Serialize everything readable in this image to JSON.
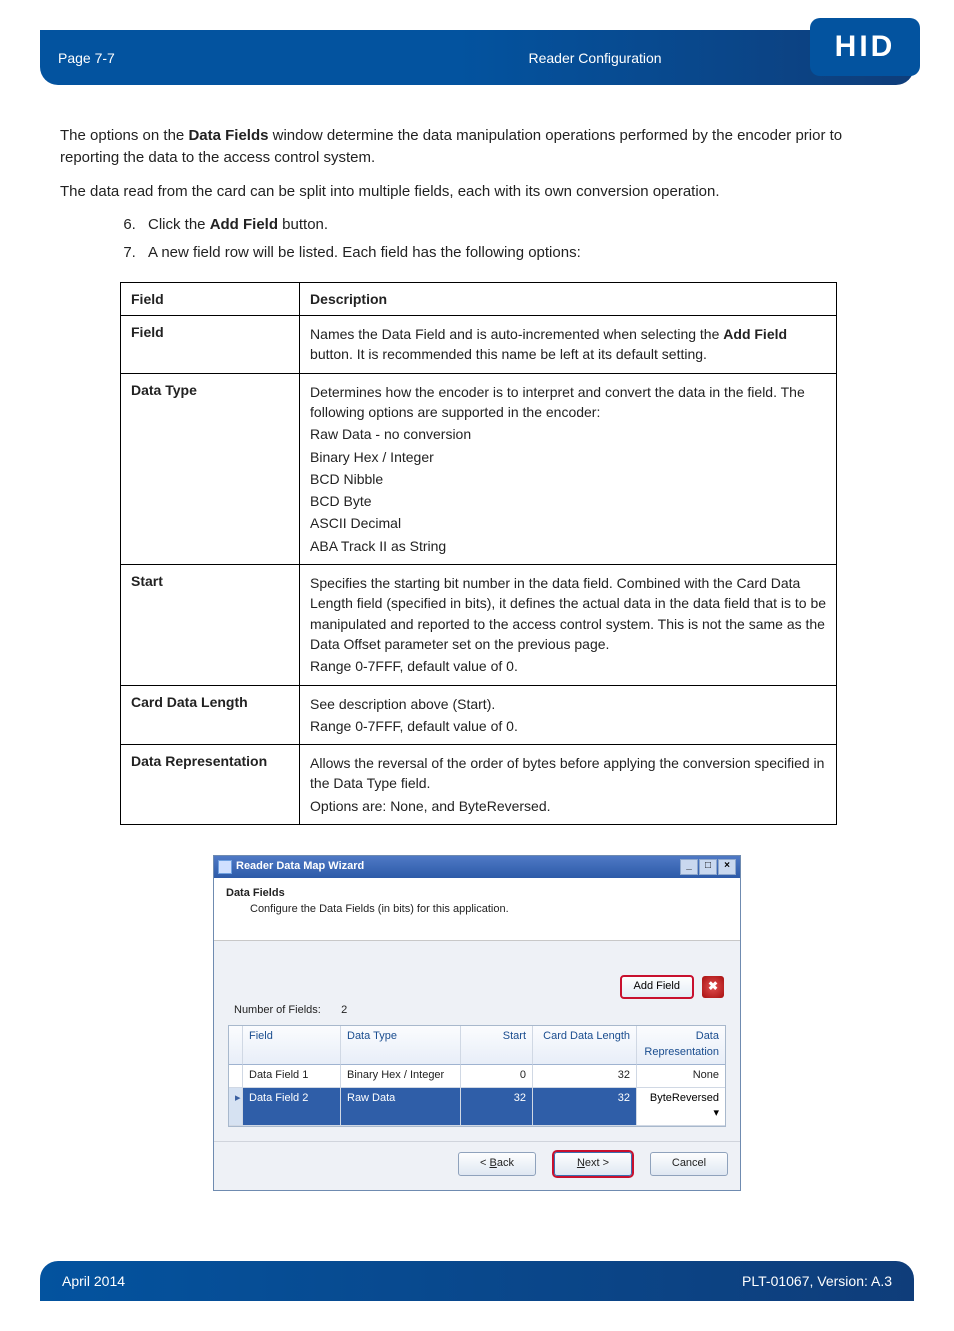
{
  "header": {
    "page_label": "Page 7-7",
    "section": "Reader Configuration",
    "logo_text": "HID"
  },
  "intro": {
    "p1_a": "The options on the ",
    "p1_b": "Data Fields",
    "p1_c": " window determine the data manipulation operations performed by the encoder prior to reporting the data to the access control system.",
    "p2": "The data read from the card can be split into multiple fields, each with its own conversion operation."
  },
  "steps": {
    "start": 6,
    "s6_a": "Click the ",
    "s6_b": "Add Field",
    "s6_c": " button.",
    "s7": "A new field row will be listed. Each field has the following options:"
  },
  "table": {
    "h_field": "Field",
    "h_desc": "Description",
    "rows": [
      {
        "name": "Field",
        "lines_a": "Names the Data Field and is auto-incremented when selecting the ",
        "lines_bold": "Add Field",
        "lines_b": " button. It is recommended this name be left at its default setting."
      },
      {
        "name": "Data Type",
        "lines": [
          "Determines how the encoder is to interpret and convert the data in the field. The following options are supported in the encoder:",
          "Raw Data - no conversion",
          "Binary Hex / Integer",
          "BCD Nibble",
          "BCD Byte",
          "ASCII Decimal",
          "ABA Track II as String"
        ]
      },
      {
        "name": "Start",
        "lines": [
          "Specifies the starting bit number in the data field. Combined with the Card Data Length field (specified in bits), it defines the actual data in the data field that is to be manipulated and reported to the access control system. This is not the same as the Data Offset parameter set on the previous page.",
          "Range 0-7FFF, default value of 0."
        ]
      },
      {
        "name": "Card Data Length",
        "lines": [
          "See description above (Start).",
          "Range 0-7FFF, default value of 0."
        ]
      },
      {
        "name": "Data Representation",
        "lines": [
          "Allows the reversal of the order of bytes before applying the conversion specified in the Data Type field.",
          "Options are: None, and ByteReversed."
        ]
      }
    ]
  },
  "wizard": {
    "title": "Reader Data Map Wizard",
    "section_title": "Data Fields",
    "section_desc": "Configure the Data Fields (in bits) for this application.",
    "num_fields_label": "Number of Fields:",
    "num_fields_value": "2",
    "add_field_btn": "Add Field",
    "columns": {
      "field": "Field",
      "type": "Data Type",
      "start": "Start",
      "len": "Card Data Length",
      "rep": "Data Representation"
    },
    "rows": [
      {
        "field": "Data Field 1",
        "type": "Binary Hex / Integer",
        "start": "0",
        "len": "32",
        "rep": "None",
        "selected": false
      },
      {
        "field": "Data Field 2",
        "type": "Raw Data",
        "start": "32",
        "len": "32",
        "rep": "ByteReversed ▾",
        "selected": true
      }
    ],
    "buttons": {
      "back_u": "B",
      "back_rest": "ack",
      "back_prefix": "< ",
      "next_u": "N",
      "next_rest": "ext >",
      "cancel": "Cancel"
    }
  },
  "footer": {
    "left": "April 2014",
    "right": "PLT-01067, Version: A.3"
  },
  "colors": {
    "header_blue": "#03539f",
    "accent_red": "#c8102e"
  }
}
